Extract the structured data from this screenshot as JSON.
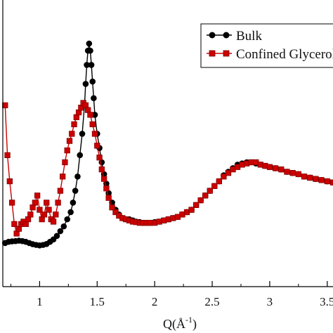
{
  "chart_data": {
    "type": "line",
    "title": "",
    "xlabel": "Q(Å",
    "xlabel_sup": "-1",
    "xlabel_close": ")",
    "ylabel": "",
    "xlim": [
      0.68,
      3.55
    ],
    "ylim": [
      0.0,
      1.0
    ],
    "x_ticks": [
      1,
      1.5,
      2,
      2.5,
      3,
      3.5
    ],
    "x_tick_labels": [
      "1",
      "1.5",
      "2",
      "2.5",
      "3",
      "3.5"
    ],
    "grid": false,
    "legend_position": "top-right",
    "series": [
      {
        "name": "Bulk",
        "color": "#000000",
        "marker": "circle",
        "x": [
          0.7,
          0.73,
          0.76,
          0.79,
          0.82,
          0.85,
          0.88,
          0.91,
          0.94,
          0.97,
          1.0,
          1.03,
          1.06,
          1.09,
          1.12,
          1.15,
          1.18,
          1.21,
          1.24,
          1.27,
          1.29,
          1.31,
          1.33,
          1.35,
          1.37,
          1.39,
          1.4,
          1.41,
          1.42,
          1.43,
          1.44,
          1.45,
          1.46,
          1.47,
          1.48,
          1.5,
          1.52,
          1.54,
          1.56,
          1.58,
          1.6,
          1.63,
          1.66,
          1.69,
          1.72,
          1.75,
          1.78,
          1.81,
          1.84,
          1.87,
          1.9,
          1.93,
          1.96,
          2.0,
          2.04,
          2.08,
          2.12,
          2.16,
          2.2,
          2.24,
          2.28,
          2.32,
          2.36,
          2.4,
          2.44,
          2.48,
          2.52,
          2.56,
          2.6,
          2.64,
          2.68,
          2.72,
          2.76,
          2.8,
          2.84,
          2.88,
          2.92,
          2.96,
          3.0,
          3.05,
          3.1,
          3.15,
          3.2,
          3.25,
          3.3,
          3.35,
          3.4,
          3.45,
          3.5,
          3.55
        ],
        "y": [
          0.16,
          0.165,
          0.167,
          0.168,
          0.17,
          0.168,
          0.165,
          0.16,
          0.155,
          0.152,
          0.15,
          0.152,
          0.156,
          0.165,
          0.175,
          0.19,
          0.21,
          0.23,
          0.26,
          0.29,
          0.33,
          0.38,
          0.44,
          0.53,
          0.62,
          0.74,
          0.83,
          0.91,
          0.97,
          1.0,
          0.97,
          0.91,
          0.84,
          0.77,
          0.7,
          0.62,
          0.56,
          0.5,
          0.45,
          0.41,
          0.37,
          0.33,
          0.3,
          0.28,
          0.265,
          0.26,
          0.26,
          0.255,
          0.25,
          0.248,
          0.245,
          0.245,
          0.245,
          0.248,
          0.25,
          0.255,
          0.26,
          0.265,
          0.27,
          0.28,
          0.29,
          0.3,
          0.32,
          0.34,
          0.36,
          0.38,
          0.4,
          0.42,
          0.445,
          0.46,
          0.475,
          0.49,
          0.495,
          0.5,
          0.5,
          0.495,
          0.49,
          0.485,
          0.48,
          0.475,
          0.47,
          0.46,
          0.455,
          0.45,
          0.44,
          0.435,
          0.43,
          0.425,
          0.42,
          0.415
        ]
      },
      {
        "name": "Confined Glycerol",
        "color": "#cc0000",
        "marker": "square",
        "x": [
          0.7,
          0.72,
          0.74,
          0.76,
          0.78,
          0.8,
          0.82,
          0.84,
          0.86,
          0.88,
          0.9,
          0.92,
          0.94,
          0.96,
          0.98,
          1.0,
          1.02,
          1.04,
          1.06,
          1.08,
          1.1,
          1.12,
          1.14,
          1.16,
          1.18,
          1.2,
          1.22,
          1.24,
          1.26,
          1.28,
          1.3,
          1.32,
          1.34,
          1.36,
          1.38,
          1.4,
          1.42,
          1.44,
          1.46,
          1.48,
          1.5,
          1.52,
          1.54,
          1.56,
          1.58,
          1.6,
          1.63,
          1.66,
          1.69,
          1.72,
          1.75,
          1.78,
          1.81,
          1.84,
          1.87,
          1.9,
          1.93,
          1.96,
          2.0,
          2.04,
          2.08,
          2.12,
          2.16,
          2.2,
          2.24,
          2.28,
          2.32,
          2.36,
          2.4,
          2.44,
          2.48,
          2.52,
          2.56,
          2.6,
          2.64,
          2.68,
          2.72,
          2.76,
          2.8,
          2.84,
          2.88,
          2.92,
          2.96,
          3.0,
          3.05,
          3.1,
          3.15,
          3.2,
          3.25,
          3.3,
          3.35,
          3.4,
          3.45,
          3.5,
          3.55
        ],
        "y": [
          0.74,
          0.53,
          0.42,
          0.33,
          0.24,
          0.2,
          0.22,
          0.24,
          0.25,
          0.24,
          0.26,
          0.28,
          0.31,
          0.33,
          0.36,
          0.3,
          0.26,
          0.28,
          0.33,
          0.3,
          0.26,
          0.25,
          0.28,
          0.33,
          0.38,
          0.44,
          0.5,
          0.55,
          0.59,
          0.62,
          0.66,
          0.69,
          0.71,
          0.73,
          0.75,
          0.74,
          0.72,
          0.7,
          0.66,
          0.62,
          0.57,
          0.52,
          0.47,
          0.43,
          0.39,
          0.35,
          0.31,
          0.29,
          0.275,
          0.265,
          0.26,
          0.255,
          0.25,
          0.248,
          0.245,
          0.245,
          0.245,
          0.245,
          0.245,
          0.25,
          0.255,
          0.26,
          0.265,
          0.27,
          0.28,
          0.29,
          0.3,
          0.32,
          0.34,
          0.36,
          0.38,
          0.4,
          0.42,
          0.44,
          0.455,
          0.47,
          0.48,
          0.49,
          0.495,
          0.5,
          0.5,
          0.49,
          0.485,
          0.48,
          0.475,
          0.47,
          0.46,
          0.455,
          0.45,
          0.44,
          0.435,
          0.43,
          0.425,
          0.42,
          0.415
        ]
      }
    ]
  }
}
